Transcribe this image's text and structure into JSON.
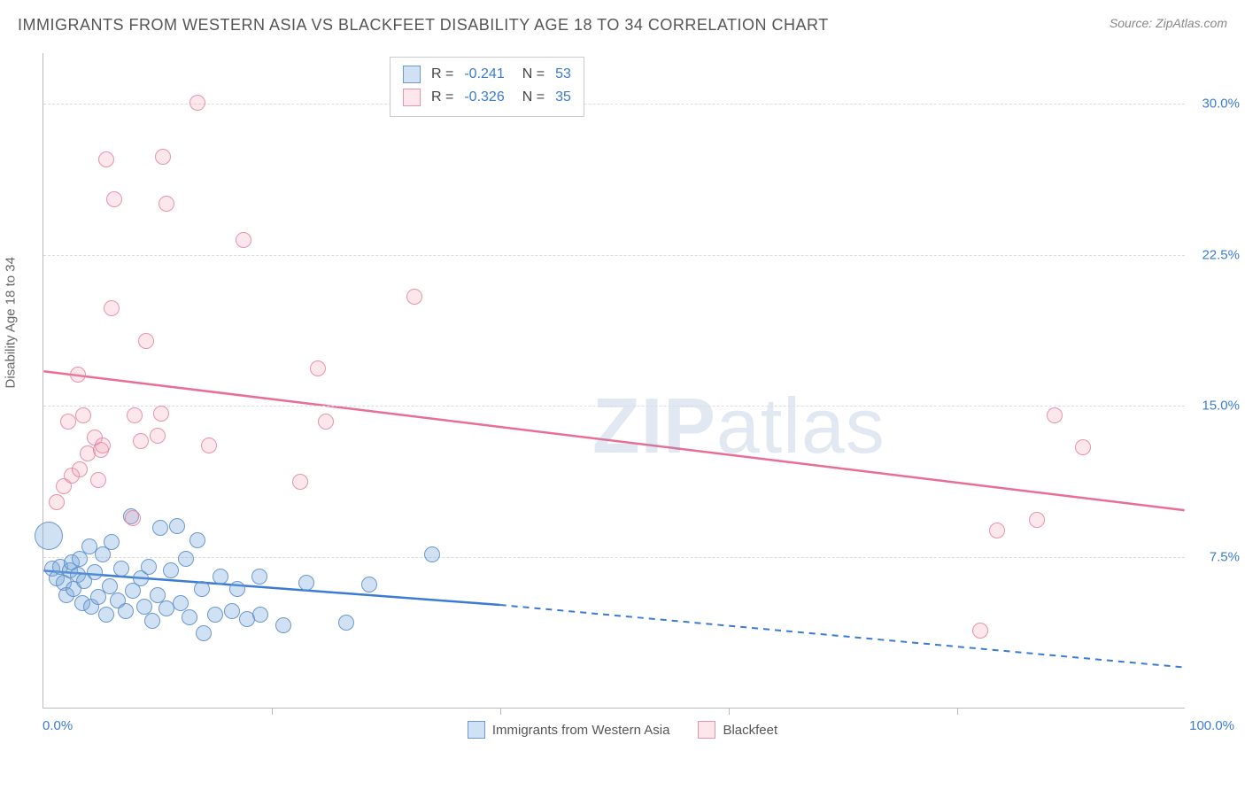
{
  "title": "IMMIGRANTS FROM WESTERN ASIA VS BLACKFEET DISABILITY AGE 18 TO 34 CORRELATION CHART",
  "source_label": "Source: ",
  "source_name": "ZipAtlas.com",
  "y_axis_label": "Disability Age 18 to 34",
  "watermark": {
    "part1": "ZIP",
    "part2": "atlas"
  },
  "chart": {
    "type": "scatter",
    "background_color": "#ffffff",
    "grid_color": "#dddddd",
    "axis_color": "#bbbbbb",
    "tick_label_color": "#3a7bd5",
    "xlim": [
      0,
      100
    ],
    "ylim": [
      0,
      32.5
    ],
    "x_ticks_minor": [
      20,
      40,
      60,
      80
    ],
    "x_tick_labels": {
      "left": "0.0%",
      "right": "100.0%"
    },
    "y_ticks": [
      {
        "value": 7.5,
        "label": "7.5%"
      },
      {
        "value": 15.0,
        "label": "15.0%"
      },
      {
        "value": 22.5,
        "label": "22.5%"
      },
      {
        "value": 30.0,
        "label": "30.0%"
      }
    ],
    "series": [
      {
        "key": "series_a",
        "name": "Immigrants from Western Asia",
        "fill_color": "rgba(120,170,220,0.35)",
        "stroke_color": "rgba(90,140,200,0.85)",
        "line_color": "#3a7bd5",
        "marker_radius": 9,
        "stats": {
          "R": "-0.241",
          "N": "53"
        },
        "trend": {
          "x0": 0,
          "y0": 6.8,
          "x1_solid": 40,
          "y1_solid": 5.1,
          "x1": 100,
          "y1": 2.0,
          "dash_after_solid": true
        },
        "points": [
          {
            "x": 0.5,
            "y": 8.5,
            "r": 16
          },
          {
            "x": 0.8,
            "y": 6.9
          },
          {
            "x": 1.2,
            "y": 6.4
          },
          {
            "x": 1.5,
            "y": 7.0
          },
          {
            "x": 1.8,
            "y": 6.2
          },
          {
            "x": 2.0,
            "y": 5.6
          },
          {
            "x": 2.3,
            "y": 6.8
          },
          {
            "x": 2.5,
            "y": 7.2
          },
          {
            "x": 2.6,
            "y": 5.9
          },
          {
            "x": 3.0,
            "y": 6.6
          },
          {
            "x": 3.2,
            "y": 7.4
          },
          {
            "x": 3.4,
            "y": 5.2
          },
          {
            "x": 3.6,
            "y": 6.3
          },
          {
            "x": 4.0,
            "y": 8.0
          },
          {
            "x": 4.2,
            "y": 5.0
          },
          {
            "x": 4.5,
            "y": 6.7
          },
          {
            "x": 4.8,
            "y": 5.5
          },
          {
            "x": 5.2,
            "y": 7.6
          },
          {
            "x": 5.5,
            "y": 4.6
          },
          {
            "x": 5.8,
            "y": 6.0
          },
          {
            "x": 6.0,
            "y": 8.2
          },
          {
            "x": 6.5,
            "y": 5.3
          },
          {
            "x": 6.8,
            "y": 6.9
          },
          {
            "x": 7.2,
            "y": 4.8
          },
          {
            "x": 7.7,
            "y": 9.5
          },
          {
            "x": 7.8,
            "y": 5.8
          },
          {
            "x": 8.5,
            "y": 6.4
          },
          {
            "x": 8.8,
            "y": 5.0
          },
          {
            "x": 9.2,
            "y": 7.0
          },
          {
            "x": 9.5,
            "y": 4.3
          },
          {
            "x": 10.0,
            "y": 5.6
          },
          {
            "x": 10.2,
            "y": 8.9
          },
          {
            "x": 10.8,
            "y": 4.9
          },
          {
            "x": 11.2,
            "y": 6.8
          },
          {
            "x": 11.7,
            "y": 9.0
          },
          {
            "x": 12.0,
            "y": 5.2
          },
          {
            "x": 12.5,
            "y": 7.4
          },
          {
            "x": 12.8,
            "y": 4.5
          },
          {
            "x": 13.5,
            "y": 8.3
          },
          {
            "x": 13.9,
            "y": 5.9
          },
          {
            "x": 14.0,
            "y": 3.7
          },
          {
            "x": 15.0,
            "y": 4.6
          },
          {
            "x": 15.5,
            "y": 6.5
          },
          {
            "x": 16.5,
            "y": 4.8
          },
          {
            "x": 17.0,
            "y": 5.9
          },
          {
            "x": 17.8,
            "y": 4.4
          },
          {
            "x": 18.9,
            "y": 6.5
          },
          {
            "x": 19.0,
            "y": 4.6
          },
          {
            "x": 21.0,
            "y": 4.1
          },
          {
            "x": 23.0,
            "y": 6.2
          },
          {
            "x": 26.5,
            "y": 4.2
          },
          {
            "x": 28.5,
            "y": 6.1
          },
          {
            "x": 34.0,
            "y": 7.6
          }
        ]
      },
      {
        "key": "series_b",
        "name": "Blackfeet",
        "fill_color": "rgba(240,160,180,0.25)",
        "stroke_color": "rgba(230,130,160,0.85)",
        "line_color": "#e86f93",
        "marker_radius": 9,
        "stats": {
          "R": "-0.326",
          "N": "35"
        },
        "trend": {
          "x0": 0,
          "y0": 16.7,
          "x1_solid": 100,
          "y1_solid": 9.8,
          "x1": 100,
          "y1": 9.8,
          "dash_after_solid": false
        },
        "points": [
          {
            "x": 1.2,
            "y": 10.2
          },
          {
            "x": 1.8,
            "y": 11.0
          },
          {
            "x": 2.2,
            "y": 14.2
          },
          {
            "x": 2.5,
            "y": 11.5
          },
          {
            "x": 3.0,
            "y": 16.5
          },
          {
            "x": 3.2,
            "y": 11.8
          },
          {
            "x": 3.5,
            "y": 14.5
          },
          {
            "x": 3.9,
            "y": 12.6
          },
          {
            "x": 4.5,
            "y": 13.4
          },
          {
            "x": 4.8,
            "y": 11.3
          },
          {
            "x": 5.0,
            "y": 12.8
          },
          {
            "x": 5.2,
            "y": 13.0
          },
          {
            "x": 5.5,
            "y": 27.2
          },
          {
            "x": 6.0,
            "y": 19.8
          },
          {
            "x": 6.2,
            "y": 25.2
          },
          {
            "x": 7.8,
            "y": 9.4
          },
          {
            "x": 8.0,
            "y": 14.5
          },
          {
            "x": 8.5,
            "y": 13.2
          },
          {
            "x": 9.0,
            "y": 18.2
          },
          {
            "x": 10.0,
            "y": 13.5
          },
          {
            "x": 10.3,
            "y": 14.6
          },
          {
            "x": 10.5,
            "y": 27.3
          },
          {
            "x": 10.8,
            "y": 25.0
          },
          {
            "x": 13.5,
            "y": 30.0
          },
          {
            "x": 14.5,
            "y": 13.0
          },
          {
            "x": 17.5,
            "y": 23.2
          },
          {
            "x": 22.5,
            "y": 11.2
          },
          {
            "x": 24.0,
            "y": 16.8
          },
          {
            "x": 24.7,
            "y": 14.2
          },
          {
            "x": 32.5,
            "y": 20.4
          },
          {
            "x": 82.0,
            "y": 3.8
          },
          {
            "x": 83.5,
            "y": 8.8
          },
          {
            "x": 87.0,
            "y": 9.3
          },
          {
            "x": 88.5,
            "y": 14.5
          },
          {
            "x": 91.0,
            "y": 12.9
          }
        ]
      }
    ],
    "legend_top": {
      "rows": [
        {
          "swatch": "blue",
          "r_label": "R =",
          "r_value": "-0.241",
          "n_label": "N =",
          "n_value": "53"
        },
        {
          "swatch": "pink",
          "r_label": "R =",
          "r_value": "-0.326",
          "n_label": "N =",
          "n_value": "35"
        }
      ]
    },
    "legend_bottom": [
      {
        "swatch": "blue",
        "label": "Immigrants from Western Asia"
      },
      {
        "swatch": "pink",
        "label": "Blackfeet"
      }
    ]
  }
}
